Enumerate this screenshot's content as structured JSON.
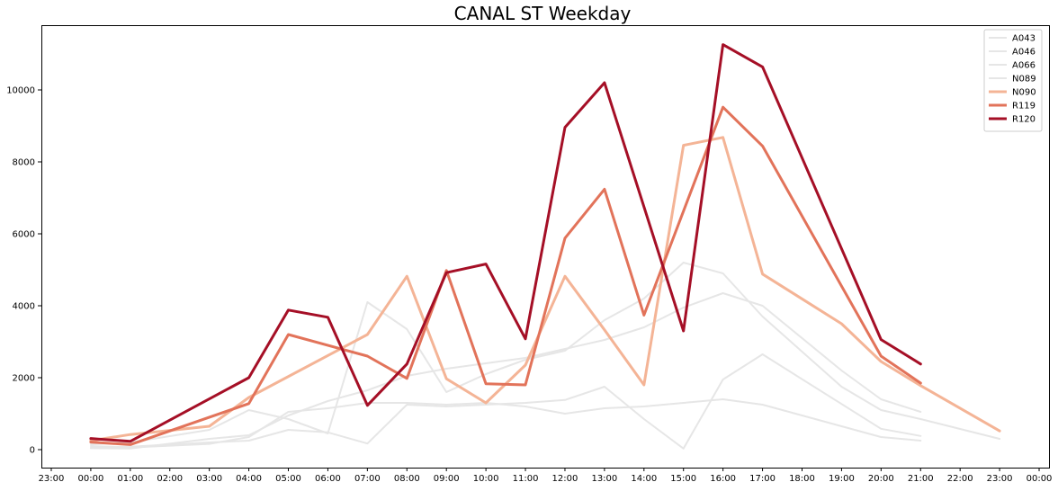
{
  "chart_data": {
    "type": "line",
    "title": "CANAL ST Weekday",
    "xlabel": "",
    "ylabel": "",
    "x_ticks": [
      "23:00",
      "00:00",
      "01:00",
      "02:00",
      "03:00",
      "04:00",
      "05:00",
      "06:00",
      "07:00",
      "08:00",
      "09:00",
      "10:00",
      "11:00",
      "12:00",
      "13:00",
      "14:00",
      "15:00",
      "16:00",
      "17:00",
      "18:00",
      "19:00",
      "20:00",
      "21:00",
      "22:00",
      "23:00",
      "00:00"
    ],
    "y_ticks": [
      0,
      2000,
      4000,
      6000,
      8000,
      10000
    ],
    "xlim": [
      "22:45",
      "00:10 (next day)"
    ],
    "ylim": [
      -500,
      11800
    ],
    "grid": false,
    "legend_placement": "top-right",
    "series": [
      {
        "name": "A043",
        "color": "#e6e6e6",
        "highlight": false,
        "points": [
          [
            "00:00",
            50
          ],
          [
            "01:00",
            80
          ],
          [
            "03:00",
            200
          ],
          [
            "04:00",
            250
          ],
          [
            "05:00",
            550
          ],
          [
            "06:00",
            480
          ],
          [
            "07:00",
            170
          ],
          [
            "08:00",
            1250
          ],
          [
            "09:00",
            1200
          ],
          [
            "10:00",
            1250
          ],
          [
            "11:00",
            1300
          ],
          [
            "12:00",
            1380
          ],
          [
            "13:00",
            1750
          ],
          [
            "14:00",
            850
          ],
          [
            "15:00",
            30
          ],
          [
            "16:00",
            1950
          ],
          [
            "17:00",
            2650
          ],
          [
            "20:00",
            580
          ],
          [
            "21:00",
            380
          ]
        ]
      },
      {
        "name": "A046",
        "color": "#e6e6e6",
        "highlight": false,
        "points": [
          [
            "00:00",
            40
          ],
          [
            "01:00",
            30
          ],
          [
            "03:00",
            300
          ],
          [
            "04:00",
            400
          ],
          [
            "05:00",
            950
          ],
          [
            "06:00",
            1350
          ],
          [
            "07:00",
            1650
          ],
          [
            "08:00",
            2050
          ],
          [
            "09:00",
            2250
          ],
          [
            "10:00",
            2400
          ],
          [
            "11:00",
            2550
          ],
          [
            "12:00",
            2800
          ],
          [
            "13:00",
            3050
          ],
          [
            "14:00",
            3400
          ],
          [
            "15:00",
            3950
          ],
          [
            "16:00",
            4350
          ],
          [
            "17:00",
            4000
          ],
          [
            "19:00",
            2200
          ],
          [
            "20:00",
            1400
          ],
          [
            "21:00",
            1050
          ]
        ]
      },
      {
        "name": "A066",
        "color": "#e6e6e6",
        "highlight": false,
        "points": [
          [
            "00:00",
            150
          ],
          [
            "01:00",
            200
          ],
          [
            "03:00",
            550
          ],
          [
            "04:00",
            1100
          ],
          [
            "05:00",
            850
          ],
          [
            "06:00",
            450
          ],
          [
            "07:00",
            4100
          ],
          [
            "08:00",
            3350
          ],
          [
            "09:00",
            1600
          ],
          [
            "10:00",
            2100
          ],
          [
            "11:00",
            2500
          ],
          [
            "12:00",
            2750
          ],
          [
            "13:00",
            3600
          ],
          [
            "14:00",
            4200
          ],
          [
            "15:00",
            5200
          ],
          [
            "16:00",
            4900
          ],
          [
            "17:00",
            3700
          ],
          [
            "19:00",
            1750
          ],
          [
            "20:00",
            1100
          ],
          [
            "21:00",
            850
          ],
          [
            "23:00",
            300
          ]
        ]
      },
      {
        "name": "N089",
        "color": "#e6e6e6",
        "highlight": false,
        "points": [
          [
            "00:00",
            100
          ],
          [
            "01:00",
            60
          ],
          [
            "03:00",
            160
          ],
          [
            "04:00",
            350
          ],
          [
            "05:00",
            1050
          ],
          [
            "06:00",
            1150
          ],
          [
            "07:00",
            1300
          ],
          [
            "08:00",
            1300
          ],
          [
            "09:00",
            1250
          ],
          [
            "10:00",
            1300
          ],
          [
            "11:00",
            1200
          ],
          [
            "12:00",
            1000
          ],
          [
            "13:00",
            1150
          ],
          [
            "14:00",
            1200
          ],
          [
            "15:00",
            1300
          ],
          [
            "16:00",
            1400
          ],
          [
            "17:00",
            1250
          ],
          [
            "20:00",
            350
          ],
          [
            "21:00",
            250
          ]
        ]
      },
      {
        "name": "N090",
        "color": "#f4b496",
        "highlight": true,
        "points": [
          [
            "00:00",
            250
          ],
          [
            "01:00",
            420
          ],
          [
            "03:00",
            650
          ],
          [
            "04:00",
            1450
          ],
          [
            "07:00",
            3200
          ],
          [
            "08:00",
            4820
          ],
          [
            "09:00",
            1970
          ],
          [
            "10:00",
            1300
          ],
          [
            "11:00",
            2350
          ],
          [
            "12:00",
            4820
          ],
          [
            "13:00",
            3330
          ],
          [
            "14:00",
            1800
          ],
          [
            "15:00",
            8460
          ],
          [
            "16:00",
            8680
          ],
          [
            "17:00",
            4880
          ],
          [
            "19:00",
            3500
          ],
          [
            "20:00",
            2450
          ],
          [
            "21:00",
            1780
          ],
          [
            "23:00",
            520
          ]
        ]
      },
      {
        "name": "R119",
        "color": "#e2735a",
        "highlight": true,
        "points": [
          [
            "00:00",
            210
          ],
          [
            "01:00",
            140
          ],
          [
            "04:00",
            1280
          ],
          [
            "05:00",
            3200
          ],
          [
            "07:00",
            2600
          ],
          [
            "08:00",
            1980
          ],
          [
            "09:00",
            4980
          ],
          [
            "10:00",
            1830
          ],
          [
            "11:00",
            1800
          ],
          [
            "12:00",
            5880
          ],
          [
            "13:00",
            7240
          ],
          [
            "14:00",
            3740
          ],
          [
            "16:00",
            9520
          ],
          [
            "17:00",
            8440
          ],
          [
            "20:00",
            2600
          ],
          [
            "21:00",
            1850
          ]
        ]
      },
      {
        "name": "R120",
        "color": "#a50f26",
        "highlight": true,
        "points": [
          [
            "00:00",
            310
          ],
          [
            "01:00",
            230
          ],
          [
            "04:00",
            2000
          ],
          [
            "05:00",
            3880
          ],
          [
            "06:00",
            3680
          ],
          [
            "07:00",
            1230
          ],
          [
            "08:00",
            2380
          ],
          [
            "09:00",
            4920
          ],
          [
            "10:00",
            5160
          ],
          [
            "11:00",
            3080
          ],
          [
            "12:00",
            8960
          ],
          [
            "13:00",
            10200
          ],
          [
            "15:00",
            3300
          ],
          [
            "16:00",
            11260
          ],
          [
            "17:00",
            10640
          ],
          [
            "20:00",
            3060
          ],
          [
            "21:00",
            2380
          ]
        ]
      }
    ]
  }
}
